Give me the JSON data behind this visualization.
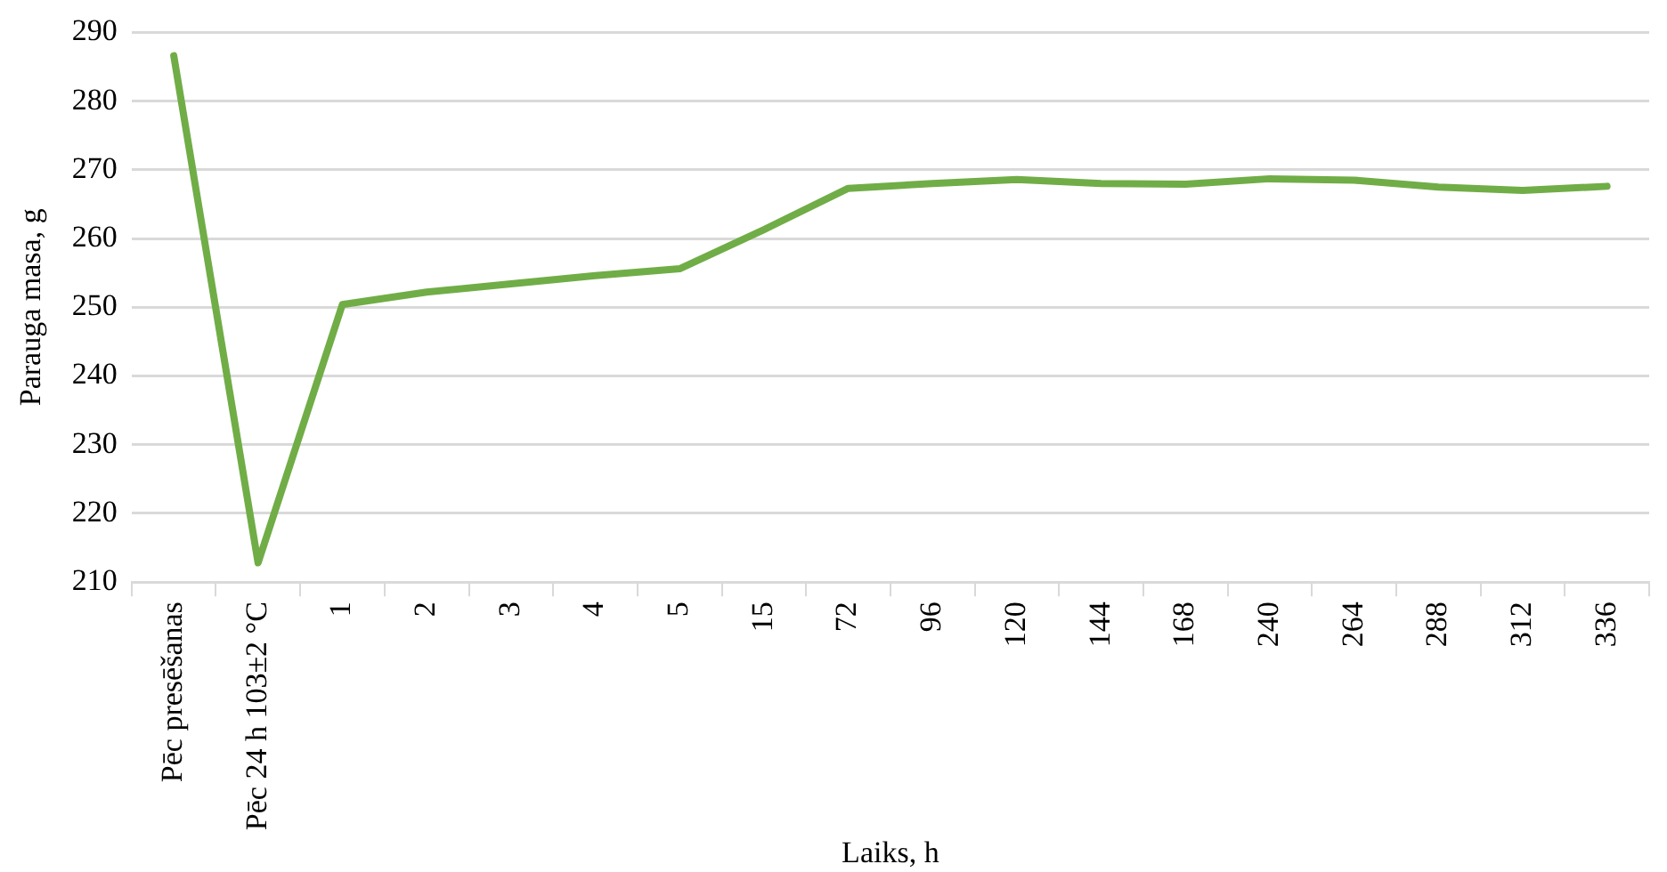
{
  "chart_data": {
    "type": "line",
    "xlabel": "Laiks, h",
    "ylabel": "Parauga masa, g",
    "categories": [
      "Pēc presēšanas",
      "Pēc 24 h 103±2 °C",
      "1",
      "2",
      "3",
      "4",
      "5",
      "15",
      "72",
      "96",
      "120",
      "144",
      "168",
      "240",
      "264",
      "288",
      "312",
      "336"
    ],
    "series": [
      {
        "color": "#70ad47",
        "values": [
          286.6,
          212.8,
          250.4,
          252.2,
          253.4,
          254.6,
          255.6,
          261.3,
          267.3,
          268,
          268.6,
          268,
          267.9,
          268.7,
          268.5,
          267.5,
          267,
          267.6
        ]
      }
    ],
    "ylim": [
      210,
      290
    ],
    "yticks": [
      210,
      220,
      230,
      240,
      250,
      260,
      270,
      280,
      290
    ],
    "grid": "y",
    "legend": false,
    "marker": "none",
    "line_style": "solid"
  }
}
